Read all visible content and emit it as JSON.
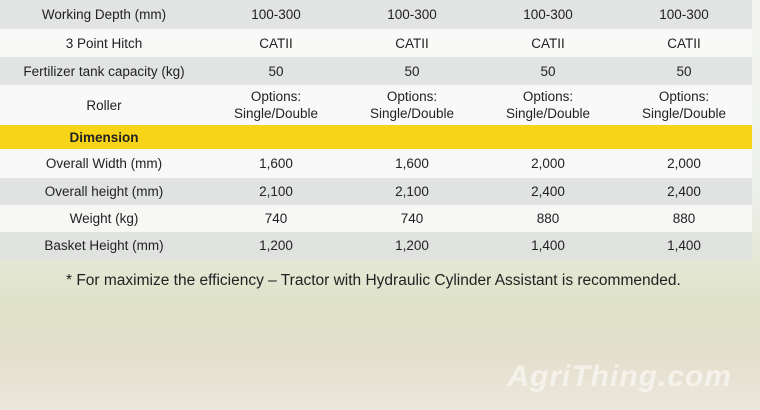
{
  "table": {
    "rows": [
      {
        "label": "Working Depth (mm)",
        "cells": [
          "100-300",
          "100-300",
          "100-300",
          "100-300"
        ]
      },
      {
        "label": "3 Point Hitch",
        "cells": [
          "CATII",
          "CATII",
          "CATII",
          "CATII"
        ]
      },
      {
        "label": "Fertilizer  tank capacity (kg)",
        "cells": [
          "50",
          "50",
          "50",
          "50"
        ]
      },
      {
        "label": "Roller",
        "cells": [
          "Options:\nSingle/Double",
          "Options:\nSingle/Double",
          "Options:\nSingle/Double",
          "Options:\nSingle/Double"
        ]
      },
      {
        "label": "Dimension"
      },
      {
        "label": "Overall Width (mm)",
        "cells": [
          "1,600",
          "1,600",
          "2,000",
          "2,000"
        ]
      },
      {
        "label": "Overall height (mm)",
        "cells": [
          "2,100",
          "2,100",
          "2,400",
          "2,400"
        ]
      },
      {
        "label": "Weight (kg)",
        "cells": [
          "740",
          "740",
          "880",
          "880"
        ]
      },
      {
        "label": "Basket Height (mm)",
        "cells": [
          "1,200",
          "1,200",
          "1,400",
          "1,400"
        ]
      }
    ]
  },
  "footnote": "* For maximize the efficiency – Tractor with Hydraulic Cylinder Assistant is recommended.",
  "watermark": "AgriThing.com"
}
